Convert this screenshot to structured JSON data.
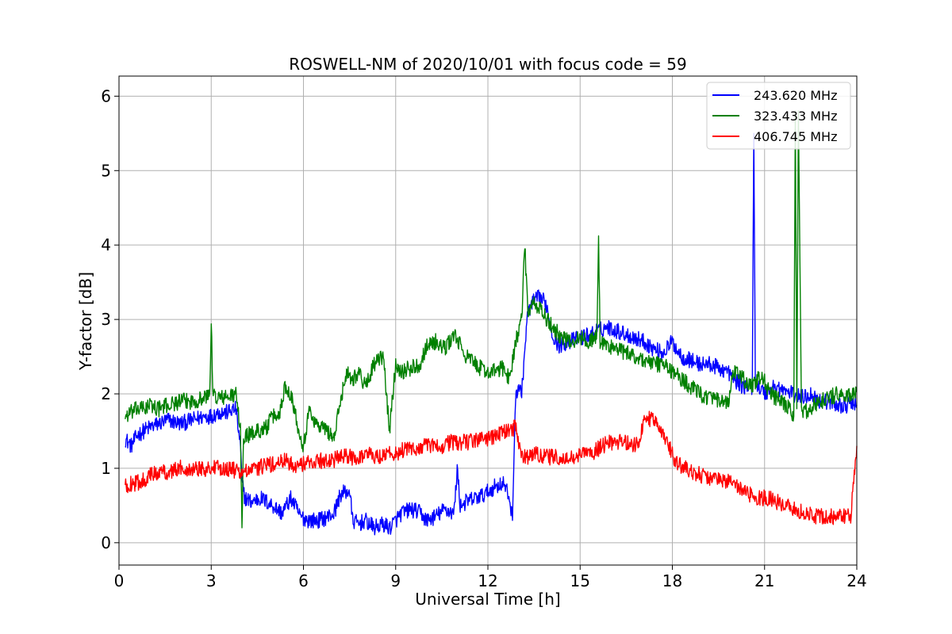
{
  "chart_data": {
    "type": "line",
    "title": "ROSWELL-NM of 2020/10/01 with focus code = 59",
    "xlabel": "Universal Time [h]",
    "ylabel": "Y-factor [dB]",
    "xlim": [
      0,
      24
    ],
    "ylim": [
      -0.3,
      6.27
    ],
    "x_ticks": [
      0,
      3,
      6,
      9,
      12,
      15,
      18,
      21,
      24
    ],
    "y_ticks": [
      0,
      1,
      2,
      3,
      4,
      5,
      6
    ],
    "grid": true,
    "legend_position": "top-right",
    "series": [
      {
        "name": "243.620 MHz",
        "color": "#0000ff",
        "x": [
          0.2,
          0.4,
          0.6,
          0.8,
          1.0,
          1.3,
          1.6,
          2.0,
          2.4,
          2.8,
          3.0,
          3.2,
          3.5,
          3.8,
          3.95,
          4.0,
          4.1,
          4.3,
          4.6,
          5.0,
          5.3,
          5.6,
          5.9,
          6.2,
          6.5,
          6.8,
          7.0,
          7.2,
          7.5,
          7.6,
          7.8,
          8.0,
          8.3,
          8.6,
          8.8,
          9.0,
          9.2,
          9.5,
          9.8,
          10.0,
          10.3,
          10.6,
          10.9,
          11.0,
          11.1,
          11.3,
          11.6,
          11.9,
          12.2,
          12.5,
          12.7,
          12.8,
          12.9,
          13.0,
          13.1,
          13.2,
          13.3,
          13.5,
          13.7,
          13.9,
          14.1,
          14.3,
          14.6,
          15.0,
          15.3,
          15.6,
          15.9,
          16.2,
          16.5,
          16.8,
          17.1,
          17.4,
          17.7,
          18.0,
          18.3,
          18.6,
          18.9,
          19.2,
          19.5,
          19.8,
          20.0,
          20.3,
          20.6,
          20.65,
          20.7,
          20.8,
          21.0,
          21.3,
          21.6,
          21.9,
          22.2,
          22.5,
          22.8,
          23.1,
          23.4,
          23.7,
          24.0
        ],
        "values": [
          1.4,
          1.3,
          1.45,
          1.5,
          1.55,
          1.6,
          1.65,
          1.6,
          1.65,
          1.7,
          1.7,
          1.75,
          1.75,
          1.8,
          1.3,
          0.8,
          0.6,
          0.55,
          0.6,
          0.5,
          0.4,
          0.6,
          0.35,
          0.3,
          0.3,
          0.35,
          0.4,
          0.65,
          0.7,
          0.3,
          0.25,
          0.3,
          0.2,
          0.25,
          0.2,
          0.3,
          0.4,
          0.45,
          0.4,
          0.3,
          0.35,
          0.45,
          0.4,
          1.0,
          0.5,
          0.55,
          0.6,
          0.65,
          0.75,
          0.8,
          0.6,
          0.3,
          2.0,
          2.1,
          2.0,
          2.6,
          3.1,
          3.25,
          3.3,
          3.2,
          2.8,
          2.65,
          2.7,
          2.75,
          2.8,
          2.85,
          2.9,
          2.85,
          2.8,
          2.75,
          2.7,
          2.6,
          2.55,
          2.7,
          2.5,
          2.45,
          2.4,
          2.4,
          2.35,
          2.3,
          2.2,
          2.1,
          2.1,
          5.5,
          2.2,
          2.1,
          2.0,
          2.1,
          2.05,
          2.0,
          1.95,
          2.0,
          1.9,
          1.9,
          1.85,
          1.85,
          1.85
        ]
      },
      {
        "name": "323.433 MHz",
        "color": "#008000",
        "x": [
          0.2,
          0.4,
          0.6,
          0.8,
          1.0,
          1.3,
          1.6,
          2.0,
          2.4,
          2.8,
          2.95,
          3.0,
          3.05,
          3.2,
          3.5,
          3.8,
          3.95,
          4.0,
          4.05,
          4.2,
          4.5,
          4.8,
          5.0,
          5.2,
          5.4,
          5.6,
          5.8,
          6.0,
          6.2,
          6.4,
          6.6,
          6.8,
          7.0,
          7.2,
          7.4,
          7.6,
          7.8,
          8.0,
          8.3,
          8.6,
          8.8,
          9.0,
          9.2,
          9.5,
          9.8,
          10.0,
          10.3,
          10.6,
          10.9,
          11.1,
          11.3,
          11.6,
          11.9,
          12.2,
          12.5,
          12.7,
          12.9,
          13.1,
          13.2,
          13.3,
          13.5,
          13.7,
          13.9,
          14.1,
          14.3,
          14.6,
          15.0,
          15.3,
          15.55,
          15.6,
          15.65,
          15.9,
          16.2,
          16.5,
          16.8,
          17.1,
          17.4,
          17.7,
          18.0,
          18.3,
          18.6,
          18.9,
          19.2,
          19.5,
          19.8,
          20.0,
          20.3,
          20.6,
          20.9,
          21.2,
          21.5,
          21.8,
          21.95,
          22.0,
          22.05,
          22.1,
          22.2,
          22.5,
          22.8,
          23.1,
          23.4,
          23.7,
          24.0
        ],
        "values": [
          1.7,
          1.75,
          1.8,
          1.8,
          1.85,
          1.8,
          1.85,
          1.9,
          1.9,
          1.95,
          2.0,
          3.0,
          2.0,
          1.95,
          1.95,
          2.0,
          1.5,
          0.2,
          1.4,
          1.45,
          1.5,
          1.55,
          1.7,
          1.7,
          2.1,
          2.0,
          1.6,
          1.3,
          1.8,
          1.6,
          1.55,
          1.5,
          1.4,
          1.9,
          2.3,
          2.2,
          2.3,
          2.1,
          2.4,
          2.5,
          1.5,
          2.4,
          2.3,
          2.35,
          2.4,
          2.65,
          2.7,
          2.6,
          2.8,
          2.65,
          2.5,
          2.4,
          2.3,
          2.3,
          2.35,
          2.2,
          2.7,
          3.0,
          4.0,
          3.1,
          3.2,
          3.15,
          3.0,
          2.9,
          2.8,
          2.7,
          2.75,
          2.7,
          2.8,
          4.1,
          2.7,
          2.65,
          2.6,
          2.55,
          2.5,
          2.45,
          2.4,
          2.4,
          2.3,
          2.2,
          2.1,
          2.0,
          1.95,
          1.9,
          1.85,
          2.3,
          2.2,
          2.1,
          2.25,
          2.0,
          1.9,
          1.8,
          1.7,
          5.8,
          1.8,
          5.8,
          1.75,
          1.8,
          1.9,
          1.95,
          2.0,
          1.95,
          2.05
        ]
      },
      {
        "name": "406.745 MHz",
        "color": "#ff0000",
        "x": [
          0.2,
          0.4,
          0.6,
          0.8,
          1.0,
          1.3,
          1.6,
          2.0,
          2.4,
          2.8,
          3.2,
          3.6,
          3.9,
          4.2,
          4.5,
          4.8,
          5.1,
          5.4,
          5.7,
          6.0,
          6.3,
          6.6,
          6.9,
          7.2,
          7.5,
          7.8,
          8.1,
          8.4,
          8.7,
          9.0,
          9.3,
          9.6,
          9.9,
          10.2,
          10.5,
          10.8,
          11.1,
          11.4,
          11.7,
          12.0,
          12.3,
          12.6,
          12.9,
          13.1,
          13.3,
          13.6,
          13.9,
          14.2,
          14.5,
          14.8,
          15.1,
          15.4,
          15.7,
          16.0,
          16.3,
          16.6,
          16.9,
          17.1,
          17.3,
          17.5,
          17.7,
          17.9,
          18.1,
          18.4,
          18.7,
          19.0,
          19.3,
          19.6,
          19.9,
          20.2,
          20.5,
          20.8,
          21.1,
          21.4,
          21.7,
          22.0,
          22.3,
          22.6,
          22.9,
          23.2,
          23.5,
          23.8,
          24.0
        ],
        "values": [
          0.75,
          0.8,
          0.8,
          0.85,
          0.9,
          0.95,
          0.95,
          1.0,
          1.0,
          1.0,
          1.0,
          1.0,
          0.95,
          0.95,
          1.0,
          1.05,
          1.05,
          1.1,
          1.05,
          1.05,
          1.1,
          1.1,
          1.1,
          1.15,
          1.15,
          1.15,
          1.2,
          1.15,
          1.2,
          1.2,
          1.25,
          1.25,
          1.3,
          1.3,
          1.3,
          1.35,
          1.35,
          1.35,
          1.4,
          1.4,
          1.45,
          1.5,
          1.55,
          1.15,
          1.15,
          1.2,
          1.15,
          1.15,
          1.1,
          1.15,
          1.2,
          1.2,
          1.3,
          1.35,
          1.35,
          1.35,
          1.3,
          1.7,
          1.65,
          1.6,
          1.5,
          1.3,
          1.1,
          1.0,
          0.95,
          0.9,
          0.85,
          0.85,
          0.8,
          0.75,
          0.65,
          0.6,
          0.6,
          0.55,
          0.5,
          0.45,
          0.4,
          0.35,
          0.35,
          0.35,
          0.35,
          0.35,
          1.3
        ]
      }
    ]
  }
}
